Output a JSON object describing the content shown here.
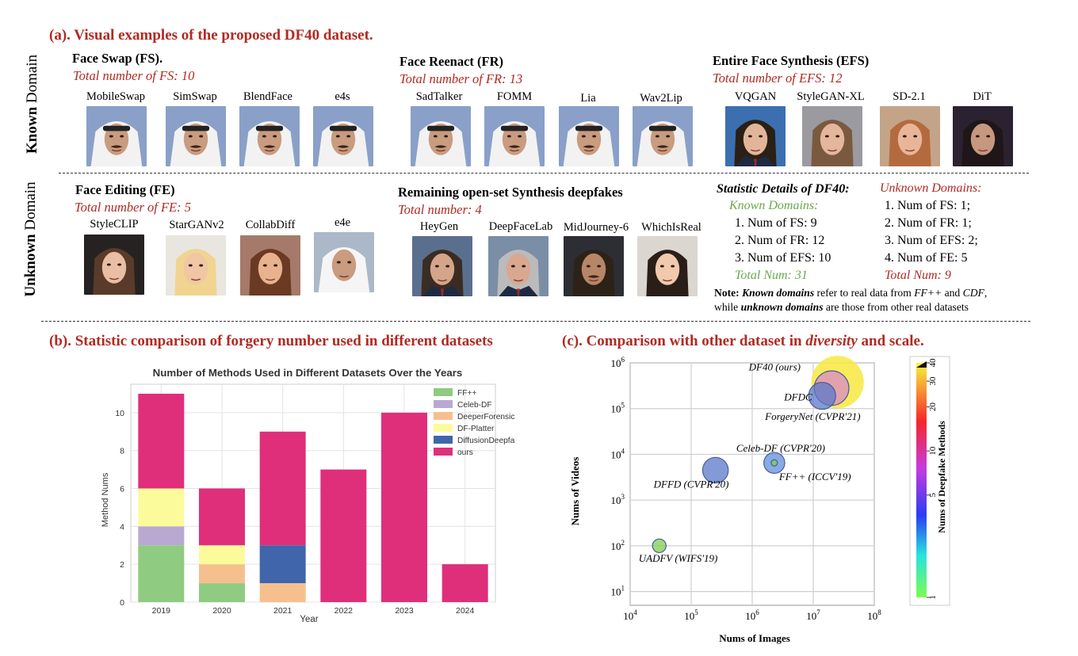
{
  "section_a": {
    "title": "(a). Visual examples of the proposed DF40 dataset.",
    "known_label": "Known Domain",
    "known_label_bold": "Known",
    "known_label_rest": " Domain",
    "unknown_label_bold": "Unknown",
    "unknown_label_rest": " Domain",
    "groups": {
      "fs": {
        "title": "Face Swap (FS).",
        "count": "Total number of FS: 10",
        "methods": [
          "MobileSwap",
          "SimSwap",
          "BlendFace",
          "e4s"
        ]
      },
      "fr": {
        "title": "Face Reenact (FR)",
        "count": "Total number of FR: 13",
        "methods": [
          "SadTalker",
          "FOMM",
          "Lia",
          "Wav2Lip"
        ]
      },
      "efs": {
        "title": "Entire Face Synthesis (EFS)",
        "count": "Total number of EFS: 12",
        "methods": [
          "VQGAN",
          "StyleGAN-XL",
          "SD-2.1",
          "DiT"
        ]
      },
      "fe": {
        "title": "Face Editing (FE)",
        "count": "Total number of FE: 5",
        "methods": [
          "StyleCLIP",
          "StarGANv2",
          "CollabDiff",
          "e4e"
        ]
      },
      "open": {
        "title": "Remaining open-set Synthesis deepfakes",
        "count": "Total number: 4",
        "methods": [
          "HeyGen",
          "DeepFaceLab",
          "MidJourney-6",
          "WhichIsReal"
        ]
      }
    },
    "stats": {
      "title": "Statistic Details of DF40:",
      "known_header": "Known Domains:",
      "known_items": [
        "1. Num of FS: 9",
        "2. Num of FR: 12",
        "3. Num of EFS: 10"
      ],
      "known_total": "Total Num: 31",
      "unknown_header": "Unknown Domains:",
      "unknown_items": [
        "1. Num of FS: 1;",
        "2. Num of FR: 1;",
        "3. Num of EFS: 2;",
        "4. Num of FE: 5"
      ],
      "unknown_total": "Total Num: 9",
      "note_prefix": "Note: ",
      "note_known": "Known domains",
      "note_mid1": " refer to real data from ",
      "note_ff": "FF++",
      "note_and": " and ",
      "note_cdf": "CDF",
      "note_comma": ",",
      "note_line2_a": "while ",
      "note_unknown": "unknown domains",
      "note_line2_b": " are those from other real datasets"
    }
  },
  "section_b": {
    "title": "(b). Statistic comparison of forgery number used in different datasets"
  },
  "section_c": {
    "title_a": "(c). Comparison with other dataset in ",
    "title_em": "diversity",
    "title_b": " and scale."
  },
  "colors": {
    "accent_red": "#b02a23",
    "ffpp": "#8fcb80",
    "celebdf": "#b9a9d2",
    "deeperforensics": "#f6c08e",
    "dfplatter": "#fbfb9b",
    "diffusiondeepfake": "#4065aa",
    "ours": "#df2f7b"
  },
  "chart_data": [
    {
      "type": "bar",
      "stacked": true,
      "title": "Number of Methods Used in Different Datasets Over the Years",
      "xlabel": "Year",
      "ylabel": "Method Nums",
      "ylim": [
        0,
        11.5
      ],
      "yticks": [
        0,
        2,
        4,
        6,
        8,
        10
      ],
      "categories": [
        "2019",
        "2020",
        "2021",
        "2022",
        "2023",
        "2024"
      ],
      "series": [
        {
          "name": "FF++",
          "color": "#8fcb80",
          "values": [
            3,
            1,
            0,
            0,
            0,
            0
          ]
        },
        {
          "name": "Celeb-DF",
          "color": "#b9a9d2",
          "values": [
            1,
            0,
            0,
            0,
            0,
            0
          ]
        },
        {
          "name": "DeeperForensics",
          "color": "#f6c08e",
          "values": [
            0,
            1,
            1,
            0,
            0,
            0
          ]
        },
        {
          "name": "DF-Platter",
          "color": "#fbfb9b",
          "values": [
            2,
            1,
            0,
            0,
            0,
            0
          ]
        },
        {
          "name": "DiffusionDeepfake",
          "color": "#4065aa",
          "values": [
            0,
            0,
            2,
            0,
            0,
            0
          ]
        },
        {
          "name": "ours",
          "color": "#df2f7b",
          "values": [
            5,
            3,
            6,
            7,
            10,
            2
          ]
        }
      ],
      "grid": true,
      "legend": "top-right"
    },
    {
      "type": "scatter",
      "log_x": true,
      "log_y": true,
      "xlabel": "Nums of Images",
      "ylabel": "Nums of Videos",
      "xlim": [
        10000,
        100000000
      ],
      "ylim": [
        5,
        1000000
      ],
      "xticks": [
        10000,
        100000,
        1000000,
        10000000,
        100000000
      ],
      "xtick_labels": [
        "10^4",
        "10^5",
        "10^6",
        "10^7",
        "10^8"
      ],
      "yticks": [
        10,
        100,
        1000,
        10000,
        100000,
        1000000
      ],
      "ytick_labels": [
        "10^1",
        "10^2",
        "10^3",
        "10^4",
        "10^5",
        "10^6"
      ],
      "points": [
        {
          "label": "UADFV (WIFS'19)",
          "x": 30000,
          "y": 100,
          "methods": 1
        },
        {
          "label": "DFFD (CVPR'20)",
          "x": 250000,
          "y": 4500,
          "methods": 7
        },
        {
          "label": "FF++ (ICCV'19)",
          "x": 2300000,
          "y": 6500,
          "methods": 4
        },
        {
          "label": "Celeb-DF (CVPR'20)",
          "x": 2300000,
          "y": 6500,
          "methods": 1
        },
        {
          "label": "DFDC",
          "x": 14000000,
          "y": 190000,
          "methods": 8
        },
        {
          "label": "ForgeryNet (CVPR'21)",
          "x": 20000000,
          "y": 280000,
          "methods": 15
        },
        {
          "label": "DF40 (ours)",
          "x": 25000000,
          "y": 380000,
          "methods": 40
        }
      ],
      "colorbar": {
        "label": "Nums of Deepfake Methods",
        "ticks": [
          1,
          5,
          10,
          20,
          30,
          40
        ]
      },
      "grid": true
    }
  ]
}
